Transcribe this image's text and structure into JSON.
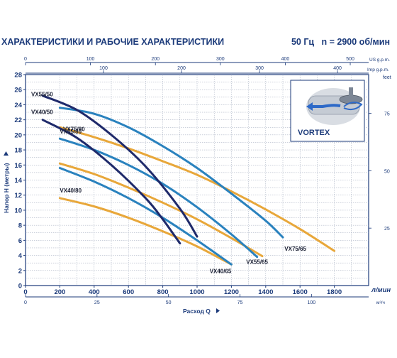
{
  "header": {
    "title": "ХАРАКТЕРИСТИКИ И РАБОЧИЕ ХАРАКТЕРИСТИКИ",
    "frequency": "50 Гц",
    "speed": "n = 2900 об/мин"
  },
  "inset": {
    "label": "VORTEX"
  },
  "colors": {
    "axis": "#1b3a7a",
    "grid": "#9aa4b8",
    "navy": "#1f2a6b",
    "blue": "#2a82be",
    "orange": "#e8a73a"
  },
  "chart_data": {
    "type": "line",
    "title": "",
    "xlabel": "Расход Q",
    "x_unit": "л/мин",
    "ylabel": "Напор H (метры)",
    "xlim": [
      0,
      2000
    ],
    "ylim": [
      0,
      28
    ],
    "xticks": [
      0,
      200,
      400,
      600,
      800,
      1000,
      1200,
      1400,
      1600,
      1800
    ],
    "yticks": [
      0,
      2,
      4,
      6,
      8,
      10,
      12,
      14,
      16,
      18,
      20,
      22,
      24,
      26,
      28
    ],
    "grid": true,
    "secondary_axes": {
      "top_usgpm": {
        "unit": "US g.p.m.",
        "ticks": [
          0,
          100,
          200,
          300,
          400,
          500
        ]
      },
      "top_impgpm": {
        "unit": "Imp g.p.m.",
        "ticks": [
          100,
          200,
          300,
          400
        ]
      },
      "bottom_m3h": {
        "unit": "м³/ч",
        "ticks": [
          0,
          25,
          50,
          75,
          100
        ]
      },
      "right_feet": {
        "unit": "feet",
        "ticks": [
          25,
          50,
          75
        ]
      }
    },
    "series": [
      {
        "name": "VX55/50",
        "color": "navy",
        "x": [
          100,
          300,
          500,
          700,
          900,
          1000
        ],
        "y": [
          25.2,
          23.3,
          20.0,
          15.8,
          10.2,
          6.5
        ]
      },
      {
        "name": "VX40/50",
        "color": "navy",
        "x": [
          100,
          300,
          500,
          700,
          800,
          900
        ],
        "y": [
          22.0,
          19.6,
          16.0,
          11.6,
          8.8,
          5.6
        ]
      },
      {
        "name": "VX75/80",
        "color": "blue",
        "x": [
          200,
          400,
          600,
          800,
          1000,
          1200,
          1400,
          1500
        ],
        "y": [
          23.6,
          22.8,
          21.0,
          18.5,
          15.6,
          12.2,
          8.6,
          6.4
        ]
      },
      {
        "name": "VX75/65",
        "color": "orange",
        "x": [
          200,
          400,
          600,
          800,
          1000,
          1200,
          1400,
          1600,
          1800
        ],
        "y": [
          21.0,
          19.7,
          18.2,
          16.5,
          14.7,
          12.5,
          10.1,
          7.5,
          4.6
        ]
      },
      {
        "name": "VX55/80",
        "color": "blue",
        "x": [
          200,
          400,
          600,
          800,
          1000,
          1200,
          1350
        ],
        "y": [
          19.5,
          18.0,
          16.0,
          13.5,
          10.4,
          6.8,
          3.8
        ]
      },
      {
        "name": "VX55/65",
        "color": "orange",
        "x": [
          200,
          400,
          600,
          800,
          1000,
          1200,
          1380
        ],
        "y": [
          16.2,
          14.8,
          13.0,
          11.0,
          8.8,
          6.3,
          3.9
        ]
      },
      {
        "name": "VX40/65",
        "color": "blue",
        "x": [
          200,
          400,
          600,
          800,
          1000,
          1200
        ],
        "y": [
          15.6,
          13.8,
          11.6,
          9.0,
          6.0,
          2.8
        ]
      },
      {
        "name": "VX40/80",
        "color": "orange",
        "x": [
          200,
          400,
          600,
          800,
          1000,
          1200
        ],
        "y": [
          11.6,
          10.5,
          9.0,
          7.2,
          5.2,
          2.8
        ]
      }
    ]
  }
}
